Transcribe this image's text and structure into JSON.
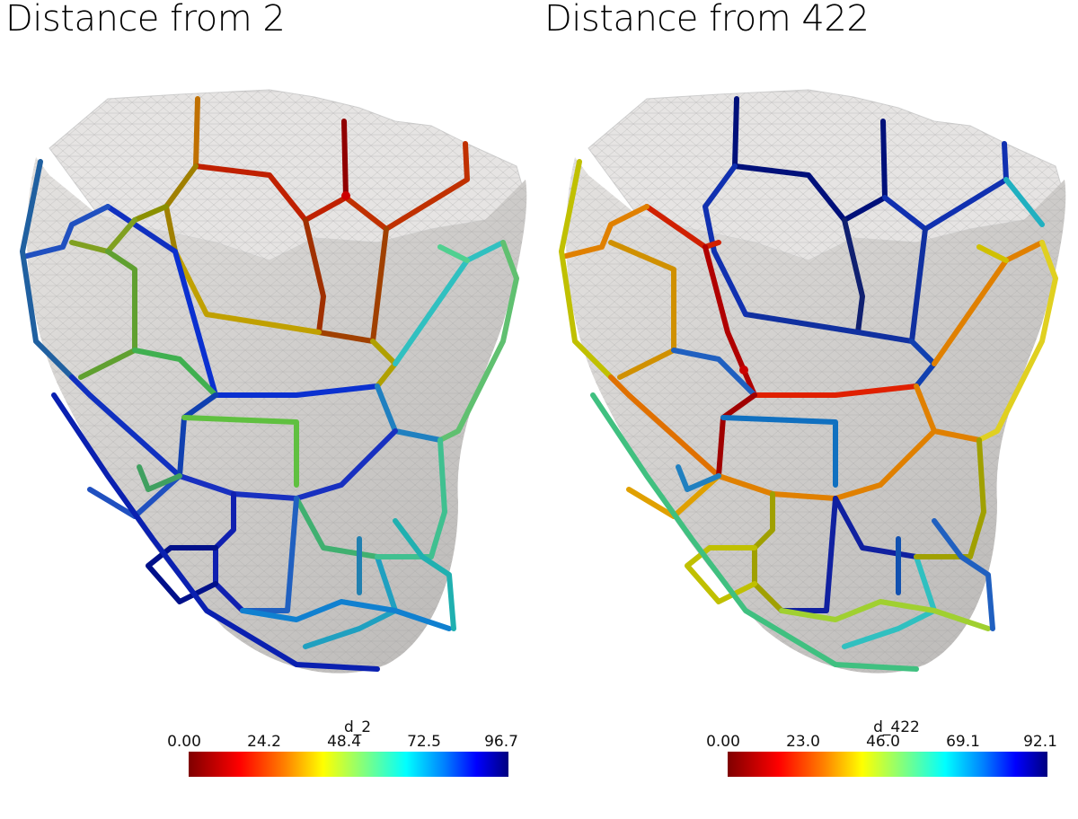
{
  "panels": [
    {
      "title": "Distance from 2",
      "colorbar": {
        "label": "d_2",
        "ticks": [
          "0.00",
          "24.2",
          "48.4",
          "72.5",
          "96.7"
        ]
      }
    },
    {
      "title": "Distance from 422",
      "colorbar": {
        "label": "d_422",
        "ticks": [
          "0.00",
          "23.0",
          "46.0",
          "69.1",
          "92.1"
        ]
      }
    }
  ],
  "colormap": [
    "#7f0000",
    "#ff0000",
    "#ff8000",
    "#ffff00",
    "#80ff80",
    "#00ffff",
    "#0080ff",
    "#0000ff",
    "#00007f"
  ]
}
